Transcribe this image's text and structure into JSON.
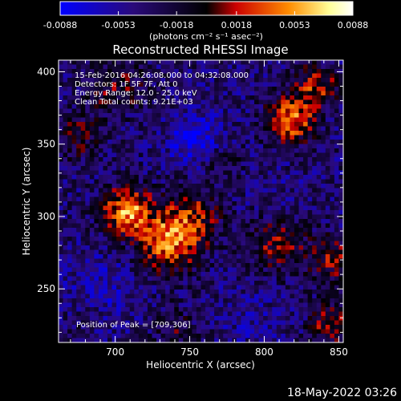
{
  "chart_data": {
    "type": "heatmap",
    "title": "Reconstructed RHESSI Image",
    "xlabel": "Heliocentric X (arcsec)",
    "ylabel": "Heliocentric Y (arcsec)",
    "xlim": [
      662,
      853
    ],
    "ylim": [
      213,
      408
    ],
    "x_ticks": [
      700,
      750,
      800,
      850
    ],
    "y_ticks": [
      250,
      300,
      350,
      400
    ],
    "colorbar": {
      "label": "(photons cm⁻² s⁻¹ asec⁻²)",
      "range": [
        -0.0088,
        0.0088
      ],
      "ticks": [
        "-0.0088",
        "-0.0053",
        "-0.0018",
        "0.0018",
        "0.0053",
        "0.0088"
      ],
      "colormap": [
        "#0000ff",
        "#2a0a7a",
        "#000000",
        "#cc0000",
        "#ff8c00",
        "#ffff99",
        "#ffffff"
      ]
    },
    "annotations": [
      "15-Feb-2016 04:26:08.000 to 04:32:08.000",
      "Detectors: 1F 5F 7F, Att 0",
      "Energy Range: 12.0 - 25.0 keV",
      "Clean    Total counts: 9.21E+03"
    ],
    "peak_label": "Position of Peak = [709,306]",
    "peak": {
      "x": 709,
      "y": 306
    },
    "sources": [
      {
        "x": 708,
        "y": 304,
        "sigma": 11,
        "amp": 0.0088
      },
      {
        "x": 735,
        "y": 282,
        "sigma": 14,
        "amp": 0.0072
      },
      {
        "x": 750,
        "y": 300,
        "sigma": 14,
        "amp": 0.0048
      },
      {
        "x": 818,
        "y": 367,
        "sigma": 11,
        "amp": 0.008
      },
      {
        "x": 835,
        "y": 390,
        "sigma": 10,
        "amp": 0.0055
      },
      {
        "x": 808,
        "y": 280,
        "sigma": 13,
        "amp": 0.0042
      },
      {
        "x": 845,
        "y": 270,
        "sigma": 12,
        "amp": 0.004
      },
      {
        "x": 845,
        "y": 225,
        "sigma": 10,
        "amp": 0.005
      },
      {
        "x": 700,
        "y": 390,
        "sigma": 14,
        "amp": 0.0035
      },
      {
        "x": 675,
        "y": 355,
        "sigma": 12,
        "amp": 0.003
      },
      {
        "x": 770,
        "y": 340,
        "sigma": 10,
        "amp": 0.0025
      },
      {
        "x": 740,
        "y": 220,
        "sigma": 12,
        "amp": 0.0025
      },
      {
        "x": 680,
        "y": 230,
        "sigma": 10,
        "amp": 0.0015
      }
    ],
    "minima": [
      {
        "x": 755,
        "y": 352,
        "sigma": 12,
        "amp": -0.0085
      },
      {
        "x": 690,
        "y": 248,
        "sigma": 18,
        "amp": -0.006
      },
      {
        "x": 790,
        "y": 228,
        "sigma": 16,
        "amp": -0.005
      },
      {
        "x": 812,
        "y": 315,
        "sigma": 12,
        "amp": -0.0045
      },
      {
        "x": 672,
        "y": 300,
        "sigma": 10,
        "amp": -0.0035
      },
      {
        "x": 780,
        "y": 400,
        "sigma": 14,
        "amp": -0.004
      }
    ],
    "background": -0.0038
  },
  "footer": {
    "timestamp": "18-May-2022 03:26"
  }
}
